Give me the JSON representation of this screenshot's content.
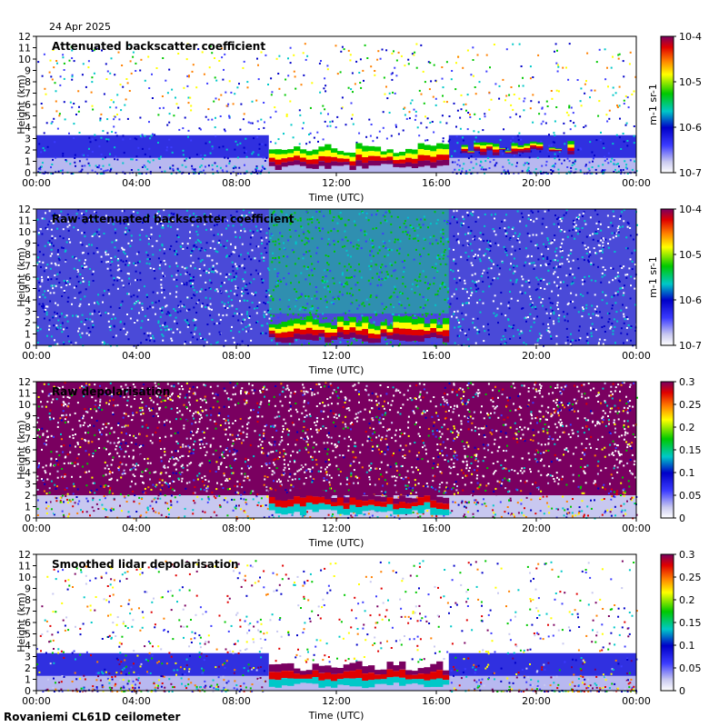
{
  "date_label": "24 Apr 2025",
  "footer": "Rovaniemi CL61D ceilometer",
  "chart_data": [
    {
      "type": "heatmap",
      "title": "Attenuated backscatter coefficient",
      "xlabel": "Time (UTC)",
      "ylabel": "Height (km)",
      "xticks": [
        "00:00",
        "04:00",
        "08:00",
        "12:00",
        "16:00",
        "20:00",
        "00:00"
      ],
      "yticks": [
        "0",
        "1",
        "2",
        "3",
        "4",
        "5",
        "6",
        "7",
        "8",
        "9",
        "10",
        "11",
        "12"
      ],
      "ylim": [
        0,
        12
      ],
      "colorbar": {
        "scale": "log",
        "ticks": [
          "10-7",
          "10-6",
          "10-5",
          "10-4"
        ],
        "label": "m-1 sr-1",
        "min": 1e-07,
        "max": 0.0001
      },
      "features": [
        {
          "name": "boundary layer",
          "from_h": 0,
          "to_h": 24,
          "base_km": 0,
          "top_km": 3.5
        },
        {
          "name": "cloud layer",
          "from_h": 9.3,
          "to_h": 16.5,
          "base_km": 0.2,
          "top_km": 2.6
        },
        {
          "name": "cloud layer",
          "from_h": 17,
          "to_h": 21.5,
          "base_km": 1.5,
          "top_km": 2.8
        }
      ]
    },
    {
      "type": "heatmap",
      "title": "Raw attenuated backscatter coefficient",
      "xlabel": "Time (UTC)",
      "ylabel": "Height (km)",
      "xticks": [
        "00:00",
        "04:00",
        "08:00",
        "12:00",
        "16:00",
        "20:00",
        "00:00"
      ],
      "yticks": [
        "0",
        "1",
        "2",
        "3",
        "4",
        "5",
        "6",
        "7",
        "8",
        "9",
        "10",
        "11",
        "12"
      ],
      "ylim": [
        0,
        12
      ],
      "colorbar": {
        "scale": "log",
        "ticks": [
          "10-7",
          "10-6",
          "10-5",
          "10-4"
        ],
        "label": "m-1 sr-1",
        "min": 1e-07,
        "max": 0.0001
      },
      "features": [
        {
          "name": "noisy signal",
          "from_h": 0,
          "to_h": 24,
          "base_km": 0,
          "top_km": 12
        },
        {
          "name": "cloud layer",
          "from_h": 9.3,
          "to_h": 16.5,
          "base_km": 0.2,
          "top_km": 2.6
        }
      ]
    },
    {
      "type": "heatmap",
      "title": "Raw depolarisation",
      "xlabel": "Time (UTC)",
      "ylabel": "Height (km)",
      "xticks": [
        "00:00",
        "04:00",
        "08:00",
        "12:00",
        "16:00",
        "20:00",
        "00:00"
      ],
      "yticks": [
        "0",
        "1",
        "2",
        "3",
        "4",
        "5",
        "6",
        "7",
        "8",
        "9",
        "10",
        "11",
        "12"
      ],
      "ylim": [
        0,
        12
      ],
      "colorbar": {
        "scale": "linear",
        "ticks": [
          "0",
          "0.05",
          "0.1",
          "0.15",
          "0.2",
          "0.25",
          "0.3"
        ],
        "label": "",
        "min": 0,
        "max": 0.3
      },
      "features": [
        {
          "name": "noise",
          "from_h": 0,
          "to_h": 24,
          "base_km": 2,
          "top_km": 12
        },
        {
          "name": "cloud layer",
          "from_h": 9.3,
          "to_h": 16.5,
          "base_km": 0.2,
          "top_km": 2.6
        }
      ]
    },
    {
      "type": "heatmap",
      "title": "Smoothed lidar depolarisation",
      "xlabel": "Time (UTC)",
      "ylabel": "Height (km)",
      "xticks": [
        "00:00",
        "04:00",
        "08:00",
        "12:00",
        "16:00",
        "20:00",
        "00:00"
      ],
      "yticks": [
        "0",
        "1",
        "2",
        "3",
        "4",
        "5",
        "6",
        "7",
        "8",
        "9",
        "10",
        "11",
        "12"
      ],
      "ylim": [
        0,
        12
      ],
      "colorbar": {
        "scale": "linear",
        "ticks": [
          "0",
          "0.05",
          "0.1",
          "0.15",
          "0.2",
          "0.25",
          "0.3"
        ],
        "label": "",
        "min": 0,
        "max": 0.3
      },
      "features": [
        {
          "name": "boundary layer",
          "from_h": 0,
          "to_h": 24,
          "base_km": 0,
          "top_km": 3.5
        },
        {
          "name": "cloud layer",
          "from_h": 9.3,
          "to_h": 16.5,
          "base_km": 0.2,
          "top_km": 2.6
        }
      ]
    }
  ]
}
